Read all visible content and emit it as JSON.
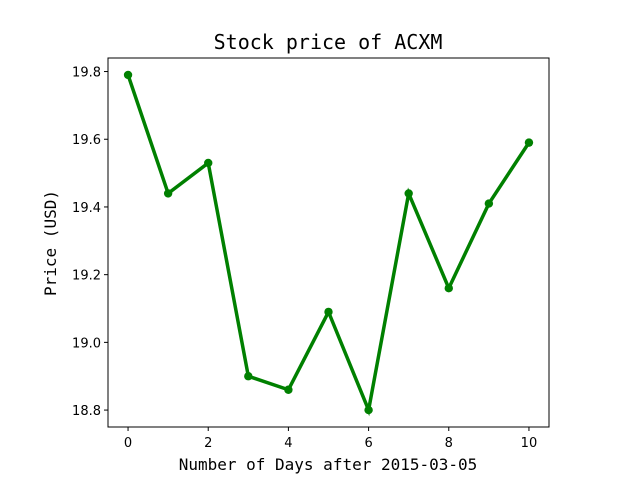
{
  "chart_data": {
    "type": "line",
    "title": "Stock price of ACXM",
    "xlabel": "Number of Days after 2015-03-05",
    "ylabel": "Price (USD)",
    "x": [
      0,
      1,
      2,
      3,
      4,
      5,
      6,
      7,
      8,
      9,
      10
    ],
    "series": [
      {
        "values": [
          19.79,
          19.44,
          19.53,
          18.9,
          18.86,
          19.09,
          18.8,
          19.44,
          19.16,
          19.41,
          19.59
        ]
      }
    ],
    "xlim": [
      -0.5,
      10.5
    ],
    "ylim": [
      18.75,
      19.84
    ],
    "xticks": [
      0,
      2,
      4,
      6,
      8,
      10
    ],
    "xtick_labels": [
      "0",
      "2",
      "4",
      "6",
      "8",
      "10"
    ],
    "yticks": [
      18.8,
      19.0,
      19.2,
      19.4,
      19.6,
      19.8
    ],
    "ytick_labels": [
      "18.8",
      "19.0",
      "19.2",
      "19.4",
      "19.6",
      "19.8"
    ],
    "grid": false,
    "line_color": "#008000",
    "marker": "circle"
  }
}
